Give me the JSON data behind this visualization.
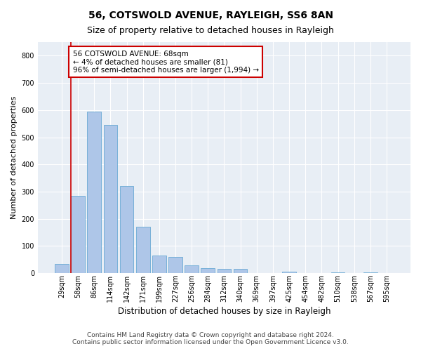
{
  "title": "56, COTSWOLD AVENUE, RAYLEIGH, SS6 8AN",
  "subtitle": "Size of property relative to detached houses in Rayleigh",
  "xlabel": "Distribution of detached houses by size in Rayleigh",
  "ylabel": "Number of detached properties",
  "categories": [
    "29sqm",
    "58sqm",
    "86sqm",
    "114sqm",
    "142sqm",
    "171sqm",
    "199sqm",
    "227sqm",
    "256sqm",
    "284sqm",
    "312sqm",
    "340sqm",
    "369sqm",
    "397sqm",
    "425sqm",
    "454sqm",
    "482sqm",
    "510sqm",
    "538sqm",
    "567sqm",
    "595sqm"
  ],
  "values": [
    35,
    285,
    595,
    545,
    320,
    170,
    65,
    60,
    30,
    18,
    15,
    15,
    0,
    0,
    5,
    0,
    0,
    3,
    0,
    3,
    0
  ],
  "bar_color": "#aec6e8",
  "bar_edge_color": "#6aaad4",
  "annotation_text": "56 COTSWOLD AVENUE: 68sqm\n← 4% of detached houses are smaller (81)\n96% of semi-detached houses are larger (1,994) →",
  "annotation_box_color": "#ffffff",
  "annotation_box_edge_color": "#cc0000",
  "highlight_line_color": "#cc0000",
  "ylim": [
    0,
    850
  ],
  "yticks": [
    0,
    100,
    200,
    300,
    400,
    500,
    600,
    700,
    800
  ],
  "background_color": "#e8eef5",
  "footer_text": "Contains HM Land Registry data © Crown copyright and database right 2024.\nContains public sector information licensed under the Open Government Licence v3.0.",
  "title_fontsize": 10,
  "subtitle_fontsize": 9,
  "xlabel_fontsize": 8.5,
  "ylabel_fontsize": 8,
  "annotation_fontsize": 7.5,
  "footer_fontsize": 6.5,
  "tick_fontsize": 7
}
